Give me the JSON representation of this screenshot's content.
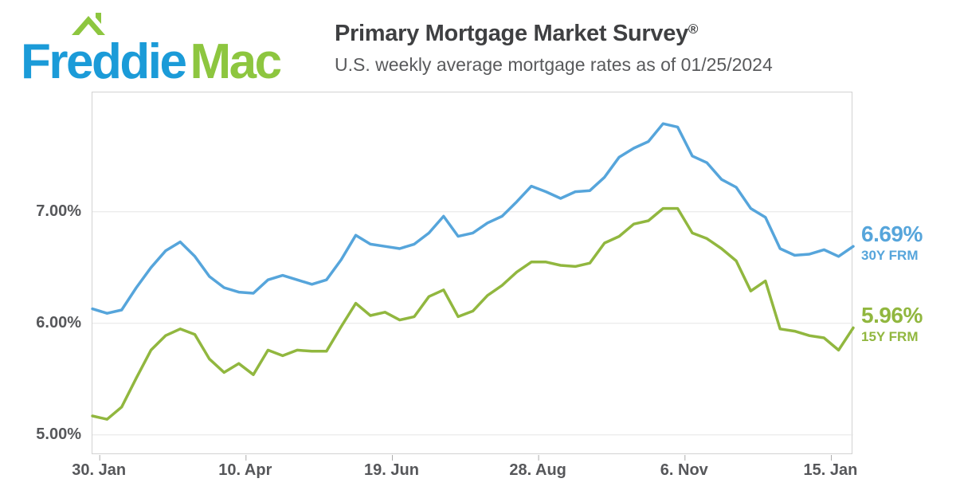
{
  "header": {
    "logo": {
      "word1": "Freddie",
      "word2": "Mac",
      "color1": "#1B9BD8",
      "color2": "#8DC63F"
    },
    "title": "Primary Mortgage Market Survey",
    "title_registered": "®",
    "subtitle": "U.S. weekly average mortgage rates as of 01/25/2024"
  },
  "colors": {
    "logo_blue": "#1B9BD8",
    "logo_green": "#8DC63F",
    "line_blue": "#56A5DB",
    "line_green": "#91B73F",
    "title_gray": "#3F4042",
    "axis_gray": "#56575A",
    "gridline_gray": "#E5E5E5"
  },
  "chart_data": {
    "type": "line",
    "title": "Primary Mortgage Market Survey",
    "subtitle": "U.S. weekly average mortgage rates as of 01/25/2024",
    "xlabel": "",
    "ylabel": "",
    "grid": true,
    "legend_position": "right",
    "ylim": [
      4.82,
      8.07
    ],
    "y_ticks": [
      {
        "value": 7.0,
        "label": "7.00%"
      },
      {
        "value": 6.0,
        "label": "6.00%"
      },
      {
        "value": 5.0,
        "label": "5.00%"
      }
    ],
    "x_ticks": [
      {
        "index": 0.5,
        "label": "30. Jan"
      },
      {
        "index": 10.5,
        "label": "10. Apr"
      },
      {
        "index": 20.5,
        "label": "19. Jun"
      },
      {
        "index": 30.5,
        "label": "28. Aug"
      },
      {
        "index": 40.5,
        "label": "6. Nov"
      },
      {
        "index": 50.5,
        "label": "15. Jan"
      }
    ],
    "series": [
      {
        "name": "30Y FRM",
        "color": "#56A5DB",
        "values": [
          6.13,
          6.09,
          6.12,
          6.32,
          6.5,
          6.65,
          6.73,
          6.6,
          6.42,
          6.32,
          6.28,
          6.27,
          6.39,
          6.43,
          6.39,
          6.35,
          6.39,
          6.57,
          6.79,
          6.71,
          6.69,
          6.67,
          6.71,
          6.81,
          6.96,
          6.78,
          6.81,
          6.9,
          6.96,
          7.09,
          7.23,
          7.18,
          7.12,
          7.18,
          7.19,
          7.31,
          7.49,
          7.57,
          7.63,
          7.79,
          7.76,
          7.5,
          7.44,
          7.29,
          7.22,
          7.03,
          6.95,
          6.67,
          6.61,
          6.62,
          6.66,
          6.6,
          6.69
        ]
      },
      {
        "name": "15Y FRM",
        "color": "#91B73F",
        "values": [
          5.17,
          5.14,
          5.25,
          5.51,
          5.76,
          5.89,
          5.95,
          5.9,
          5.68,
          5.56,
          5.64,
          5.54,
          5.76,
          5.71,
          5.76,
          5.75,
          5.75,
          5.97,
          6.18,
          6.07,
          6.1,
          6.03,
          6.06,
          6.24,
          6.3,
          6.06,
          6.11,
          6.25,
          6.34,
          6.46,
          6.55,
          6.55,
          6.52,
          6.51,
          6.54,
          6.72,
          6.78,
          6.89,
          6.92,
          7.03,
          7.03,
          6.81,
          6.76,
          6.67,
          6.56,
          6.29,
          6.38,
          5.95,
          5.93,
          5.89,
          5.87,
          5.76,
          5.96
        ]
      }
    ],
    "annotations": [
      {
        "rate": "6.69%",
        "label": "30Y FRM",
        "value": 6.69,
        "color": "#56A5DB"
      },
      {
        "rate": "5.96%",
        "label": "15Y FRM",
        "value": 5.96,
        "color": "#91B73F"
      }
    ]
  }
}
